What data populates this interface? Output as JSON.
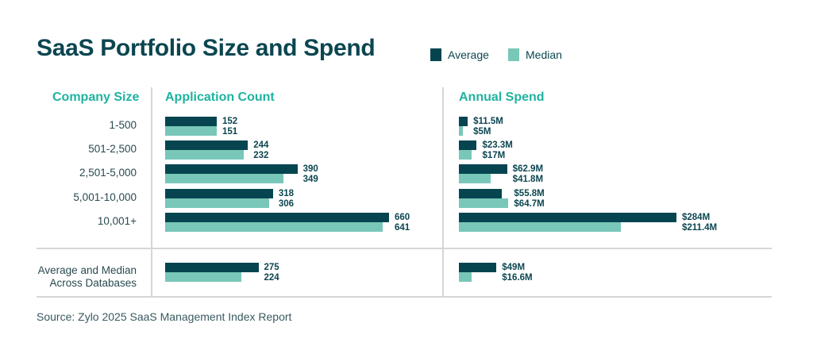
{
  "colors": {
    "average": "#064550",
    "median": "#79c7b8",
    "header": "#1fb3a0",
    "title": "#0b4650"
  },
  "chart_data": {
    "type": "bar",
    "orientation": "horizontal",
    "title": "SaaS Portfolio Size and Spend",
    "legend": [
      "Average",
      "Median"
    ],
    "legend_placement": "top-right",
    "row_header": "Company Size",
    "categories": [
      "1-500",
      "501-2,500",
      "2,501-5,000",
      "5,001-10,000",
      "10,001+"
    ],
    "summary_category": [
      "Average and Median",
      "Across Databases"
    ],
    "panels": [
      {
        "title": "Application Count",
        "series": [
          {
            "name": "Average",
            "values": [
              152,
              244,
              390,
              318,
              660
            ],
            "labels": [
              "152",
              "244",
              "390",
              "318",
              "660"
            ]
          },
          {
            "name": "Median",
            "values": [
              151,
              232,
              349,
              306,
              641
            ],
            "labels": [
              "151",
              "232",
              "349",
              "306",
              "641"
            ]
          }
        ],
        "summary": {
          "Average": 275,
          "Median": 224,
          "labels": [
            "275",
            "224"
          ]
        }
      },
      {
        "title": "Annual Spend",
        "unit": "$M",
        "series": [
          {
            "name": "Average",
            "values": [
              11.5,
              23.3,
              62.9,
              55.8,
              284
            ],
            "labels": [
              "$11.5M",
              "$23.3M",
              "$62.9M",
              "$55.8M",
              "$284M"
            ]
          },
          {
            "name": "Median",
            "values": [
              5,
              17,
              41.8,
              64.7,
              211.4
            ],
            "labels": [
              "$5M",
              "$17M",
              "$41.8M",
              "$64.7M",
              "$211.4M"
            ]
          }
        ],
        "summary": {
          "Average": 49,
          "Median": 16.6,
          "labels": [
            "$49M",
            "$16.6M"
          ]
        }
      }
    ],
    "grid": false
  },
  "source": "Source: Zylo 2025 SaaS Management Index Report"
}
